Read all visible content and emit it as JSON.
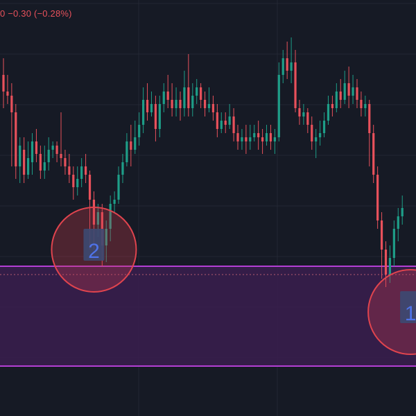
{
  "header": {
    "change_text": "0  −0.30 (−0.28%)"
  },
  "colors": {
    "background": "#161a25",
    "grid": "#232734",
    "up": "#1e9e88",
    "down": "#e8515b",
    "zone_fill": "#3a1f4f",
    "zone_line": "#b43fd4",
    "price_line": "#b35a70",
    "marker_circle": "#e0444e",
    "marker_fill": "rgba(205,60,75,0.30)",
    "marker_badge": "#3d4a72",
    "marker_text": "#4f73ea"
  },
  "chart_data": {
    "type": "candlestick",
    "title": "",
    "xlabel": "",
    "ylabel": "",
    "grid": true,
    "ylim": [
      0,
      100
    ],
    "candles": [
      [
        82,
        78,
        86,
        74
      ],
      [
        78,
        77,
        82,
        75
      ],
      [
        77,
        73,
        80,
        60
      ],
      [
        73,
        60,
        75,
        57
      ],
      [
        60,
        65,
        67,
        56
      ],
      [
        64,
        58,
        67,
        56
      ],
      [
        58,
        62,
        66,
        57
      ],
      [
        61,
        66,
        68,
        58
      ],
      [
        66,
        63,
        69,
        61
      ],
      [
        63,
        59,
        65,
        57
      ],
      [
        59,
        61,
        65,
        57
      ],
      [
        61,
        64,
        67,
        59
      ],
      [
        64,
        65,
        66,
        62
      ],
      [
        65,
        63,
        66,
        61
      ],
      [
        63,
        62,
        73,
        60
      ],
      [
        62,
        60,
        64,
        58
      ],
      [
        60,
        58,
        63,
        56
      ],
      [
        58,
        55,
        60,
        52
      ],
      [
        55,
        57,
        60,
        53
      ],
      [
        57,
        60,
        62,
        55
      ],
      [
        60,
        58,
        63,
        56
      ],
      [
        58,
        52,
        59,
        40
      ],
      [
        52,
        46,
        54,
        40
      ],
      [
        46,
        49,
        51,
        43
      ],
      [
        49,
        41,
        51,
        36
      ],
      [
        41,
        45,
        47,
        37
      ],
      [
        45,
        51,
        53,
        42
      ],
      [
        51,
        52,
        54,
        49
      ],
      [
        52,
        58,
        60,
        51
      ],
      [
        58,
        61,
        63,
        56
      ],
      [
        61,
        66,
        68,
        60
      ],
      [
        66,
        64,
        70,
        60
      ],
      [
        64,
        67,
        71,
        63
      ],
      [
        67,
        70,
        73,
        65
      ],
      [
        70,
        76,
        79,
        68
      ],
      [
        76,
        73,
        80,
        71
      ],
      [
        73,
        75,
        78,
        72
      ],
      [
        75,
        69,
        77,
        66
      ],
      [
        69,
        75,
        77,
        67
      ],
      [
        75,
        78,
        80,
        73
      ],
      [
        78,
        76,
        82,
        74
      ],
      [
        76,
        74,
        80,
        72
      ],
      [
        74,
        76,
        79,
        72
      ],
      [
        76,
        74,
        78,
        71
      ],
      [
        74,
        79,
        83,
        72
      ],
      [
        79,
        74,
        87,
        72
      ],
      [
        74,
        77,
        80,
        72
      ],
      [
        77,
        79,
        81,
        75
      ],
      [
        79,
        76,
        80,
        74
      ],
      [
        76,
        74,
        78,
        72
      ],
      [
        74,
        75,
        79,
        73
      ],
      [
        75,
        73,
        77,
        71
      ],
      [
        73,
        69,
        75,
        67
      ],
      [
        69,
        71,
        73,
        68
      ],
      [
        71,
        70,
        73,
        68
      ],
      [
        70,
        72,
        75,
        69
      ],
      [
        72,
        68,
        74,
        66
      ],
      [
        68,
        66,
        70,
        64
      ],
      [
        66,
        67,
        69,
        64
      ],
      [
        67,
        66,
        70,
        63
      ],
      [
        66,
        67,
        70,
        64
      ],
      [
        67,
        68,
        70,
        66
      ],
      [
        68,
        67,
        71,
        64
      ],
      [
        67,
        66,
        69,
        63
      ],
      [
        66,
        68,
        70,
        65
      ],
      [
        68,
        66,
        70,
        64
      ],
      [
        66,
        67,
        69,
        63
      ],
      [
        67,
        82,
        85,
        66
      ],
      [
        82,
        86,
        88,
        80
      ],
      [
        86,
        83,
        90,
        81
      ],
      [
        83,
        85,
        91,
        80
      ],
      [
        85,
        74,
        88,
        73
      ],
      [
        74,
        72,
        76,
        70
      ],
      [
        72,
        73,
        75,
        70
      ],
      [
        73,
        70,
        74,
        68
      ],
      [
        70,
        66,
        72,
        64
      ],
      [
        66,
        67,
        69,
        62
      ],
      [
        67,
        68,
        71,
        65
      ],
      [
        68,
        71,
        73,
        67
      ],
      [
        71,
        75,
        77,
        70
      ],
      [
        75,
        74,
        77,
        72
      ],
      [
        74,
        78,
        80,
        73
      ],
      [
        78,
        76,
        81,
        74
      ],
      [
        76,
        80,
        83,
        75
      ],
      [
        80,
        77,
        84,
        74
      ],
      [
        77,
        79,
        82,
        75
      ],
      [
        79,
        76,
        81,
        74
      ],
      [
        76,
        74,
        78,
        72
      ],
      [
        74,
        75,
        77,
        72
      ],
      [
        75,
        68,
        76,
        60
      ],
      [
        68,
        58,
        70,
        56
      ],
      [
        58,
        47,
        60,
        45
      ],
      [
        47,
        40,
        49,
        33
      ],
      [
        40,
        34,
        42,
        31
      ],
      [
        34,
        38,
        41,
        32
      ],
      [
        38,
        45,
        47,
        36
      ],
      [
        45,
        48,
        50,
        42
      ],
      [
        48,
        50,
        53,
        46
      ]
    ],
    "support_zone": {
      "low": 12,
      "high": 36
    },
    "dotted_level": 34,
    "markers": [
      {
        "label": "2",
        "candle": 22,
        "price": 40
      },
      {
        "label": "1",
        "candle": 99,
        "price": 25
      }
    ]
  }
}
